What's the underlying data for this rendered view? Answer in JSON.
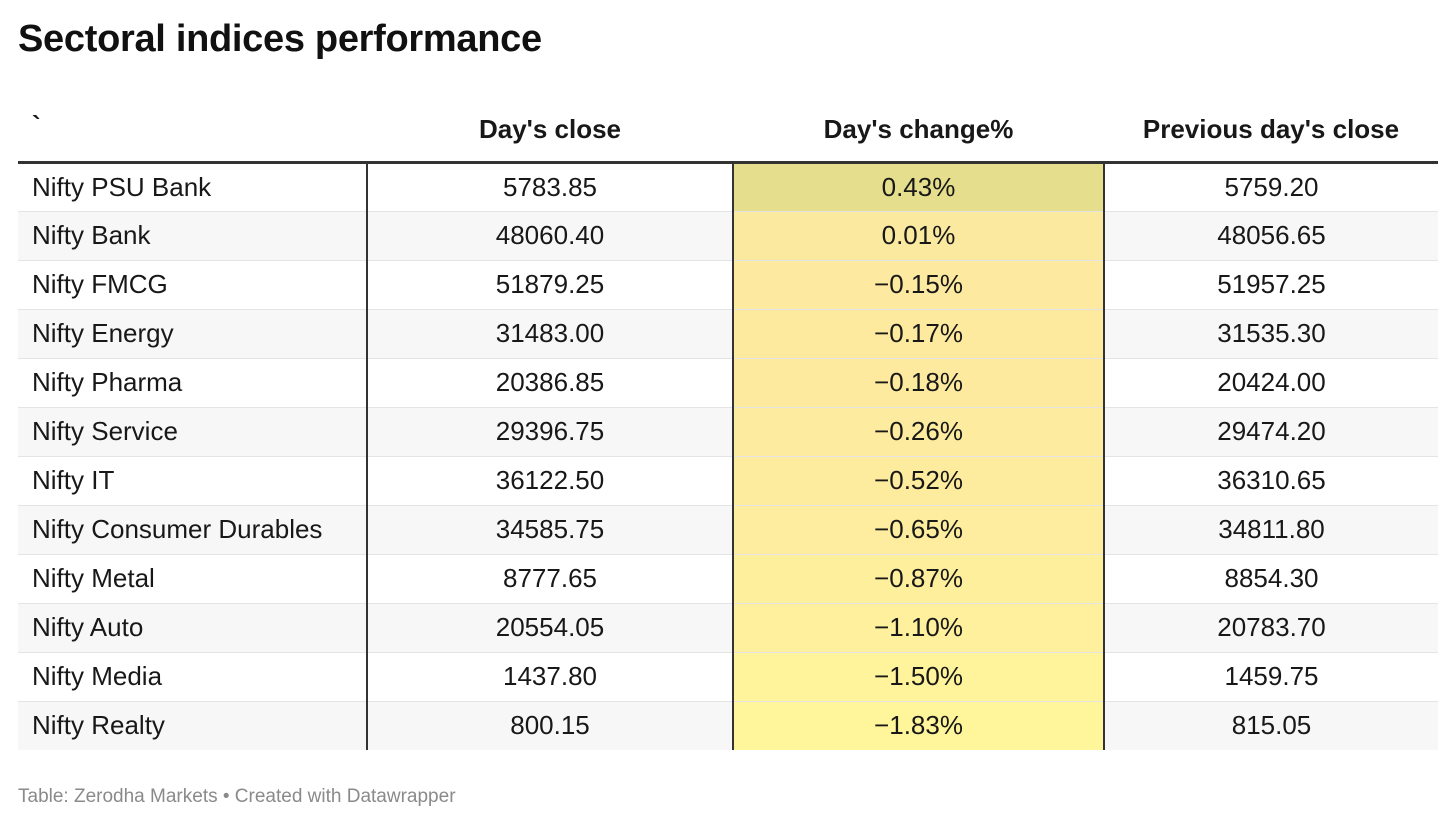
{
  "title": "Sectoral indices performance",
  "footer": "Table: Zerodha Markets • Created with Datawrapper",
  "chart_data": {
    "type": "table",
    "title": "Sectoral indices performance",
    "columns": [
      "`",
      "Day's close",
      "Day's change%",
      "Previous day's close"
    ],
    "rows": [
      {
        "name": "Nifty PSU Bank",
        "close": "5783.85",
        "change": "0.43%",
        "change_value": 0.43,
        "prev": "5759.20"
      },
      {
        "name": "Nifty Bank",
        "close": "48060.40",
        "change": "0.01%",
        "change_value": 0.01,
        "prev": "48056.65"
      },
      {
        "name": "Nifty FMCG",
        "close": "51879.25",
        "change": "−0.15%",
        "change_value": -0.15,
        "prev": "51957.25"
      },
      {
        "name": "Nifty Energy",
        "close": "31483.00",
        "change": "−0.17%",
        "change_value": -0.17,
        "prev": "31535.30"
      },
      {
        "name": "Nifty Pharma",
        "close": "20386.85",
        "change": "−0.18%",
        "change_value": -0.18,
        "prev": "20424.00"
      },
      {
        "name": "Nifty Service",
        "close": "29396.75",
        "change": "−0.26%",
        "change_value": -0.26,
        "prev": "29474.20"
      },
      {
        "name": "Nifty IT",
        "close": "36122.50",
        "change": "−0.52%",
        "change_value": -0.52,
        "prev": "36310.65"
      },
      {
        "name": "Nifty Consumer Durables",
        "close": "34585.75",
        "change": "−0.65%",
        "change_value": -0.65,
        "prev": "34811.80"
      },
      {
        "name": "Nifty Metal",
        "close": "8777.65",
        "change": "−0.87%",
        "change_value": -0.87,
        "prev": "8854.30"
      },
      {
        "name": "Nifty Auto",
        "close": "20554.05",
        "change": "−1.10%",
        "change_value": -1.1,
        "prev": "20783.70"
      },
      {
        "name": "Nifty Media",
        "close": "1437.80",
        "change": "−1.50%",
        "change_value": -1.5,
        "prev": "1459.75"
      },
      {
        "name": "Nifty Realty",
        "close": "800.15",
        "change": "−1.83%",
        "change_value": -1.83,
        "prev": "815.05"
      }
    ],
    "heatmap_colors": {
      "high": "#e5df8d",
      "mid": "#fde9a0",
      "low": "#fff59a"
    }
  }
}
